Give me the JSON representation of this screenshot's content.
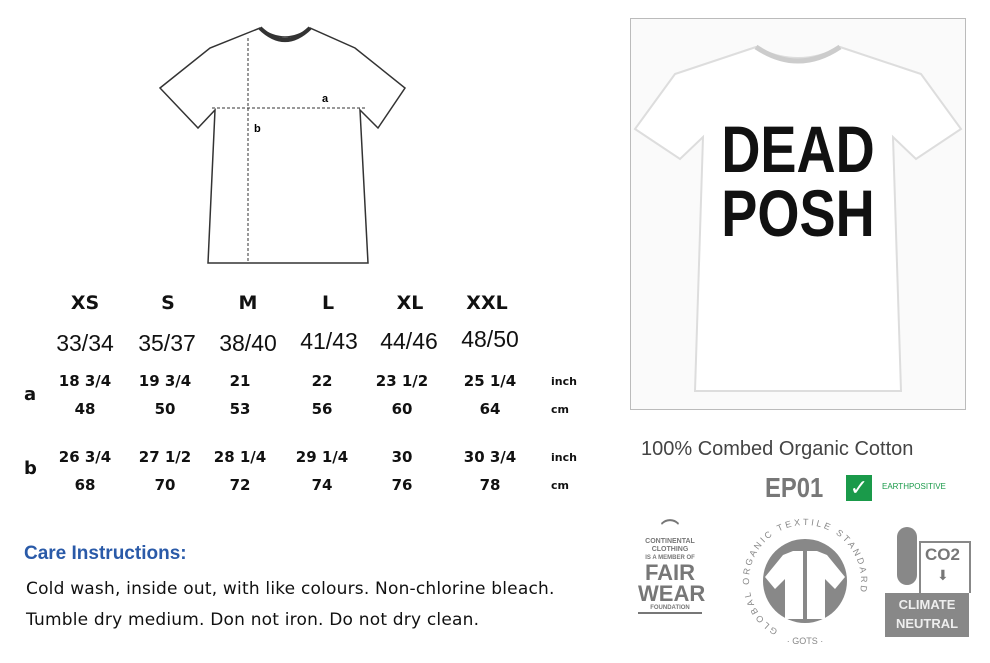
{
  "diagram": {
    "label_a": "a",
    "label_b": "b"
  },
  "size_chart": {
    "sizes": [
      "XS",
      "S",
      "M",
      "L",
      "XL",
      "XXL"
    ],
    "chest_numbers": [
      "33/34",
      "35/37",
      "38/40",
      "41/43",
      "44/46",
      "48/50"
    ],
    "rows": [
      {
        "label": "a",
        "inch": [
          "18 3/4",
          "19 3/4",
          "21",
          "22",
          "23 1/2",
          "25 1/4"
        ],
        "cm": [
          "48",
          "50",
          "53",
          "56",
          "60",
          "64"
        ]
      },
      {
        "label": "b",
        "inch": [
          "26 3/4",
          "27 1/2",
          "28 1/4",
          "29 1/4",
          "30",
          "30 3/4"
        ],
        "cm": [
          "68",
          "70",
          "72",
          "74",
          "76",
          "78"
        ]
      }
    ],
    "unit_inch": "inch",
    "unit_cm": "cm"
  },
  "care": {
    "title": "Care Instructions:",
    "line1": "Cold wash, inside out, with like colours. Non-chlorine bleach.",
    "line2": "Tumble dry medium. Don not iron. Do not dry clean.",
    "title_color": "#2a5aa8"
  },
  "product": {
    "print_line1": "DEAD",
    "print_line2": "POSH",
    "material": "100% Combed Organic Cotton",
    "code": "EP01",
    "brand": "EARTHPOSITIVE",
    "brand_color": "#1a9a4a"
  },
  "logos": {
    "fairwear": {
      "l1": "CONTINENTAL",
      "l2": "CLOTHING",
      "l3": "IS A MEMBER OF",
      "l4": "FAIR",
      "l5": "WEAR",
      "l6": "FOUNDATION"
    },
    "gots": {
      "ring": "GLOBAL ORGANIC TEXTILE STANDARD",
      "bottom": "· GOTS ·"
    },
    "climate": {
      "co2": "CO2",
      "l1": "CLIMATE",
      "l2": "NEUTRAL"
    }
  }
}
